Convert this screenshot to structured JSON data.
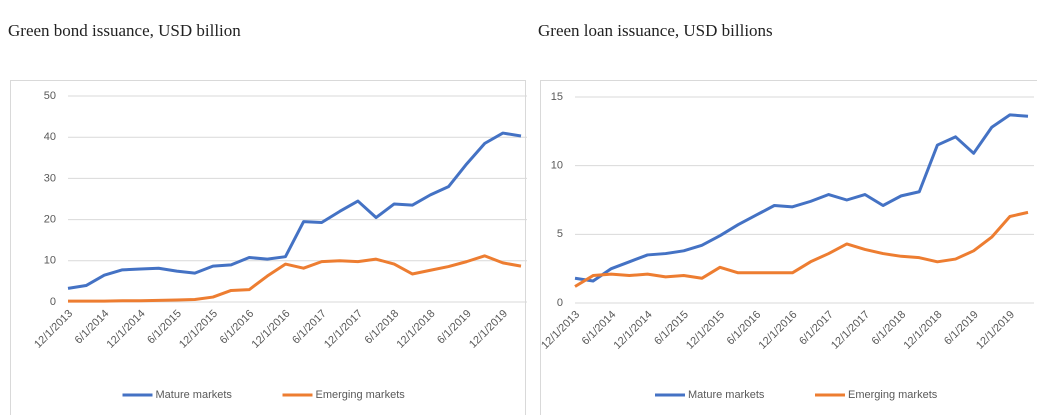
{
  "chart_data": [
    {
      "type": "line",
      "title": "Green bond issuance, USD billion",
      "categories": [
        "12/1/2013",
        null,
        "6/1/2014",
        null,
        "12/1/2014",
        null,
        "6/1/2015",
        null,
        "12/1/2015",
        null,
        "6/1/2016",
        null,
        "12/1/2016",
        null,
        "6/1/2017",
        null,
        "12/1/2017",
        null,
        "6/1/2018",
        null,
        "12/1/2018",
        null,
        "6/1/2019",
        null,
        "12/1/2019",
        null
      ],
      "series": [
        {
          "name": "Mature markets",
          "color": "#4472c4",
          "values": [
            3.3,
            4,
            6.5,
            7.8,
            8,
            8.2,
            7.5,
            7,
            8.7,
            9,
            10.8,
            10.4,
            11,
            19.5,
            19.3,
            22,
            24.5,
            20.5,
            23.8,
            23.5,
            26,
            28,
            33.5,
            38.5,
            41,
            40.3
          ]
        },
        {
          "name": "Emerging markets",
          "color": "#ed7d31",
          "values": [
            0.2,
            0.2,
            0.2,
            0.3,
            0.3,
            0.4,
            0.5,
            0.6,
            1.2,
            2.8,
            3,
            6.3,
            9.2,
            8.2,
            9.8,
            10,
            9.8,
            10.4,
            9.2,
            6.8,
            7.7,
            8.6,
            9.8,
            11.2,
            9.5,
            8.7
          ]
        }
      ],
      "ylim": [
        0,
        50
      ],
      "yticks": [
        0,
        10,
        20,
        30,
        40,
        50
      ],
      "grid": true,
      "legend": "bottom"
    },
    {
      "type": "line",
      "title": "Green loan issuance, USD billions",
      "categories": [
        "12/1/2013",
        null,
        "6/1/2014",
        null,
        "12/1/2014",
        null,
        "6/1/2015",
        null,
        "12/1/2015",
        null,
        "6/1/2016",
        null,
        "12/1/2016",
        null,
        "6/1/2017",
        null,
        "12/1/2017",
        null,
        "6/1/2018",
        null,
        "12/1/2018",
        null,
        "6/1/2019",
        null,
        "12/1/2019",
        null
      ],
      "series": [
        {
          "name": "Mature markets",
          "color": "#4472c4",
          "values": [
            1.8,
            1.6,
            2.5,
            3.0,
            3.5,
            3.6,
            3.8,
            4.2,
            4.9,
            5.7,
            6.4,
            7.1,
            7.0,
            7.4,
            7.9,
            7.5,
            7.9,
            7.1,
            7.8,
            8.1,
            11.5,
            12.1,
            10.9,
            12.8,
            13.7,
            13.6
          ]
        },
        {
          "name": "Emerging markets",
          "color": "#ed7d31",
          "values": [
            1.2,
            2.0,
            2.1,
            2.0,
            2.1,
            1.9,
            2.0,
            1.8,
            2.6,
            2.2,
            2.2,
            2.2,
            2.2,
            3.0,
            3.6,
            4.3,
            3.9,
            3.6,
            3.4,
            3.3,
            3.0,
            3.2,
            3.8,
            4.8,
            6.3,
            6.6
          ]
        }
      ],
      "ylim": [
        0,
        15
      ],
      "yticks": [
        0,
        5,
        10,
        15
      ],
      "grid": true,
      "legend": "bottom"
    }
  ]
}
